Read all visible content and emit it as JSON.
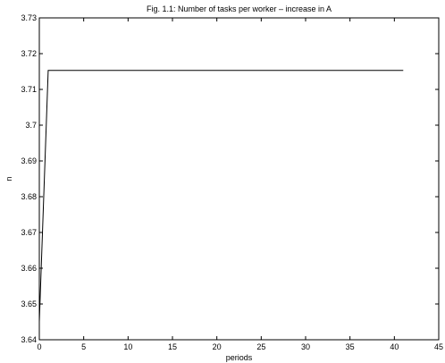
{
  "chart_data": {
    "type": "line",
    "title": "Fig. 1.1: Number of tasks per worker – increase in A",
    "xlabel": "periods",
    "ylabel": "n",
    "xlim": [
      0,
      45
    ],
    "ylim": [
      3.64,
      3.73
    ],
    "xticks": [
      0,
      5,
      10,
      15,
      20,
      25,
      30,
      35,
      40,
      45
    ],
    "yticks": [
      3.64,
      3.65,
      3.66,
      3.67,
      3.68,
      3.69,
      3.7,
      3.71,
      3.72,
      3.73
    ],
    "xtick_labels": [
      "0",
      "5",
      "10",
      "15",
      "20",
      "25",
      "30",
      "35",
      "40",
      "45"
    ],
    "ytick_labels": [
      "3.64",
      "3.65",
      "3.66",
      "3.67",
      "3.68",
      "3.69",
      "3.7",
      "3.71",
      "3.72",
      "3.73"
    ],
    "grid": false,
    "series": [
      {
        "x": [
          0,
          1,
          2,
          3,
          4,
          5,
          6,
          7,
          8,
          9,
          10,
          11,
          12,
          13,
          14,
          15,
          16,
          17,
          18,
          19,
          20,
          21,
          22,
          23,
          24,
          25,
          26,
          27,
          28,
          29,
          30,
          31,
          32,
          33,
          34,
          35,
          36,
          37,
          38,
          39,
          40,
          41
        ],
        "values": [
          3.645,
          3.7153,
          3.7153,
          3.7153,
          3.7153,
          3.7153,
          3.7153,
          3.7153,
          3.7153,
          3.7153,
          3.7153,
          3.7153,
          3.7153,
          3.7153,
          3.7153,
          3.7153,
          3.7153,
          3.7153,
          3.7153,
          3.7153,
          3.7153,
          3.7153,
          3.7153,
          3.7153,
          3.7153,
          3.7153,
          3.7153,
          3.7153,
          3.7153,
          3.7153,
          3.7153,
          3.7153,
          3.7153,
          3.7153,
          3.7153,
          3.7153,
          3.7153,
          3.7153,
          3.7153,
          3.7153,
          3.7153,
          3.7153
        ],
        "color": "#000000"
      }
    ]
  }
}
